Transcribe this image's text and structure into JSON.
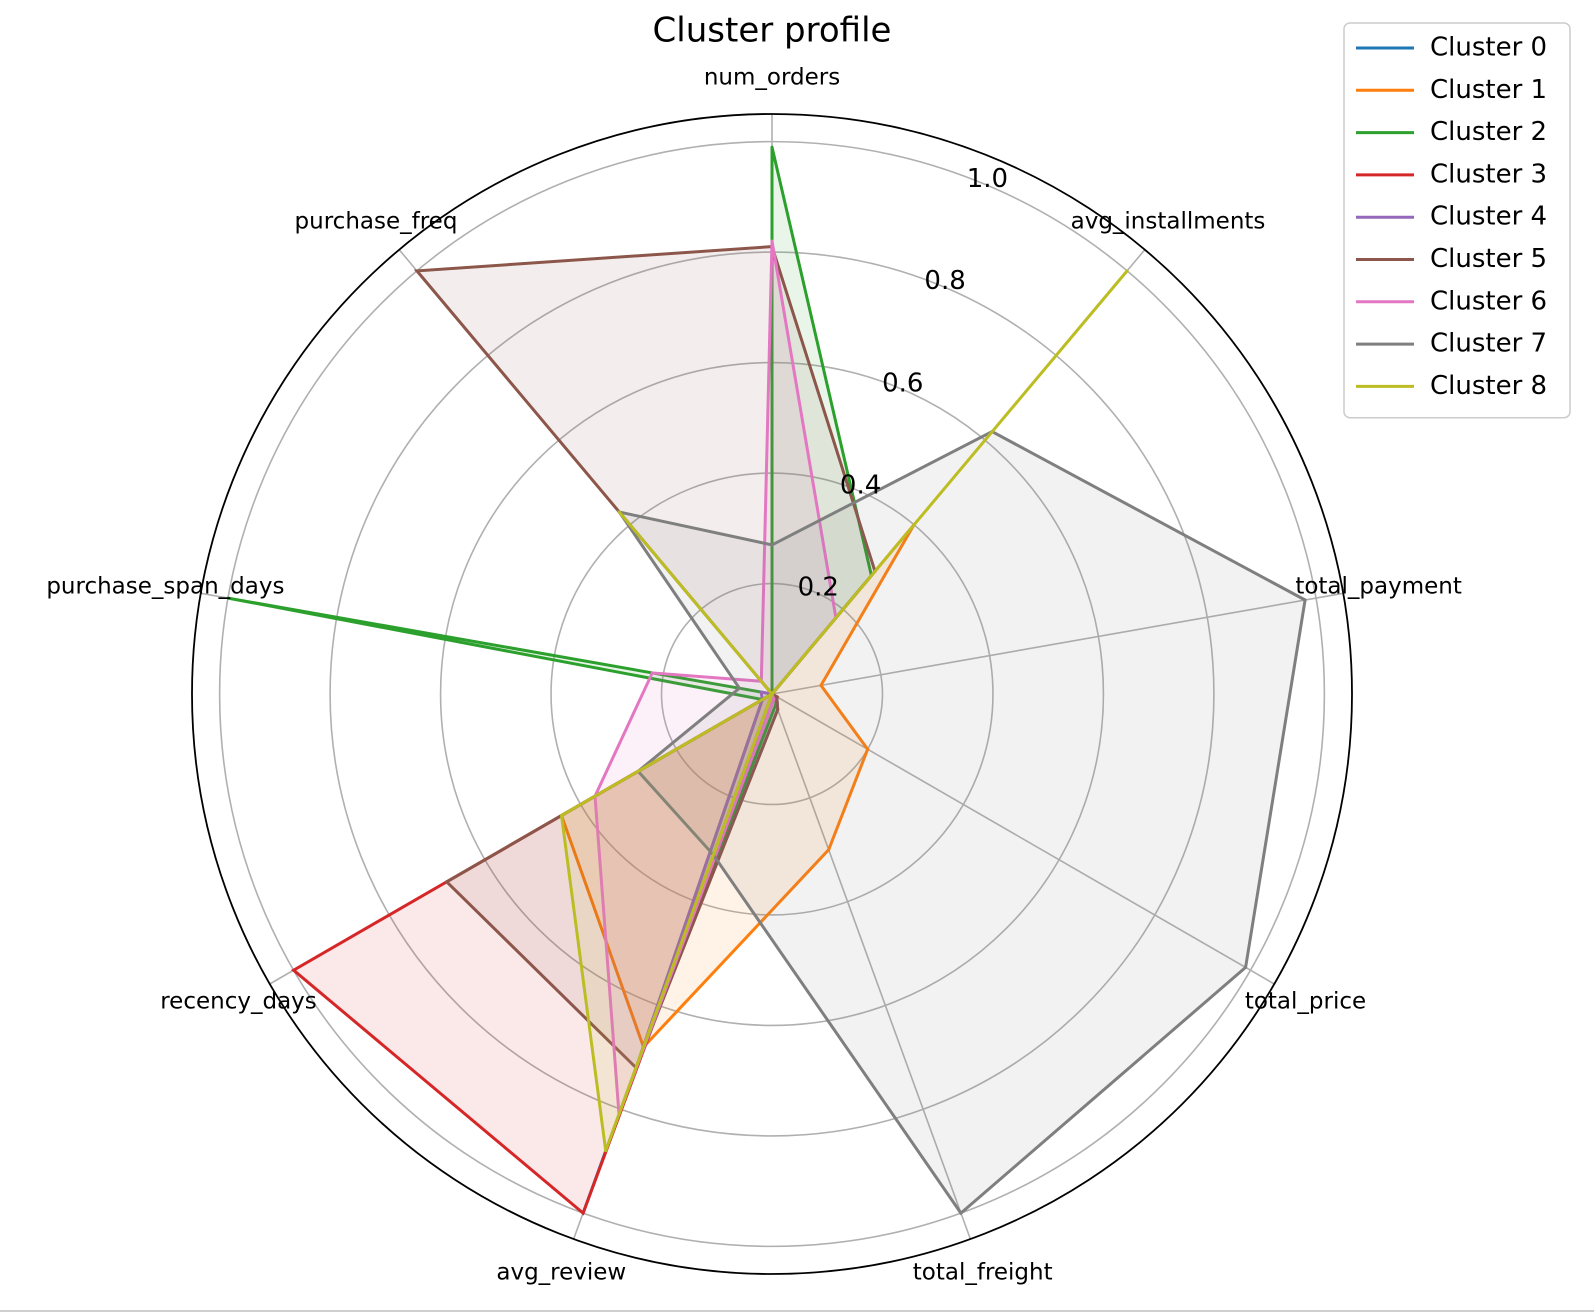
{
  "chart_data": {
    "type": "radar",
    "title": "Cluster profile",
    "axes": [
      "num_orders",
      "avg_installments",
      "total_payment",
      "total_price",
      "total_freight",
      "avg_review",
      "recency_days",
      "purchase_span_days",
      "purchase_freq"
    ],
    "radial_ticks": [
      0.2,
      0.4,
      0.6,
      0.8,
      1.0
    ],
    "radial_tick_labels": [
      "0.2",
      "0.4",
      "0.6",
      "0.8",
      "1.0"
    ],
    "rlim": [
      0,
      1.05
    ],
    "grid": true,
    "legend_position": "top-right",
    "series": [
      {
        "name": "Cluster 0",
        "color": "#1f77b4",
        "values": [
          0.0,
          0.0,
          0.0,
          0.0,
          0.0,
          1.0,
          0.0,
          0.0,
          0.0
        ]
      },
      {
        "name": "Cluster 1",
        "color": "#ff7f0e",
        "values": [
          0.0,
          0.4,
          0.09,
          0.2,
          0.3,
          0.68,
          0.44,
          0.0,
          0.03
        ]
      },
      {
        "name": "Cluster 2",
        "color": "#2ca02c",
        "values": [
          0.99,
          0.28,
          0.0,
          0.01,
          0.02,
          0.7,
          0.02,
          1.0,
          0.0
        ]
      },
      {
        "name": "Cluster 3",
        "color": "#d62728",
        "values": [
          0.0,
          0.0,
          0.0,
          0.01,
          0.01,
          1.0,
          1.0,
          0.0,
          0.0
        ]
      },
      {
        "name": "Cluster 4",
        "color": "#9467bd",
        "values": [
          0.0,
          0.0,
          0.0,
          0.01,
          0.03,
          0.71,
          0.02,
          0.02,
          0.0
        ]
      },
      {
        "name": "Cluster 5",
        "color": "#8c564b",
        "values": [
          0.81,
          0.29,
          0.0,
          0.01,
          0.03,
          0.72,
          0.68,
          0.0,
          1.0
        ]
      },
      {
        "name": "Cluster 6",
        "color": "#e377c2",
        "values": [
          0.82,
          0.18,
          0.0,
          0.0,
          0.01,
          0.81,
          0.37,
          0.22,
          0.03
        ]
      },
      {
        "name": "Cluster 7",
        "color": "#7f7f7f",
        "values": [
          0.27,
          0.62,
          0.98,
          0.99,
          1.0,
          0.31,
          0.28,
          0.06,
          0.43
        ]
      },
      {
        "name": "Cluster 8",
        "color": "#bcbd22",
        "values": [
          0.0,
          1.0,
          0.0,
          0.0,
          0.0,
          0.88,
          0.44,
          0.0,
          0.43
        ]
      }
    ]
  }
}
